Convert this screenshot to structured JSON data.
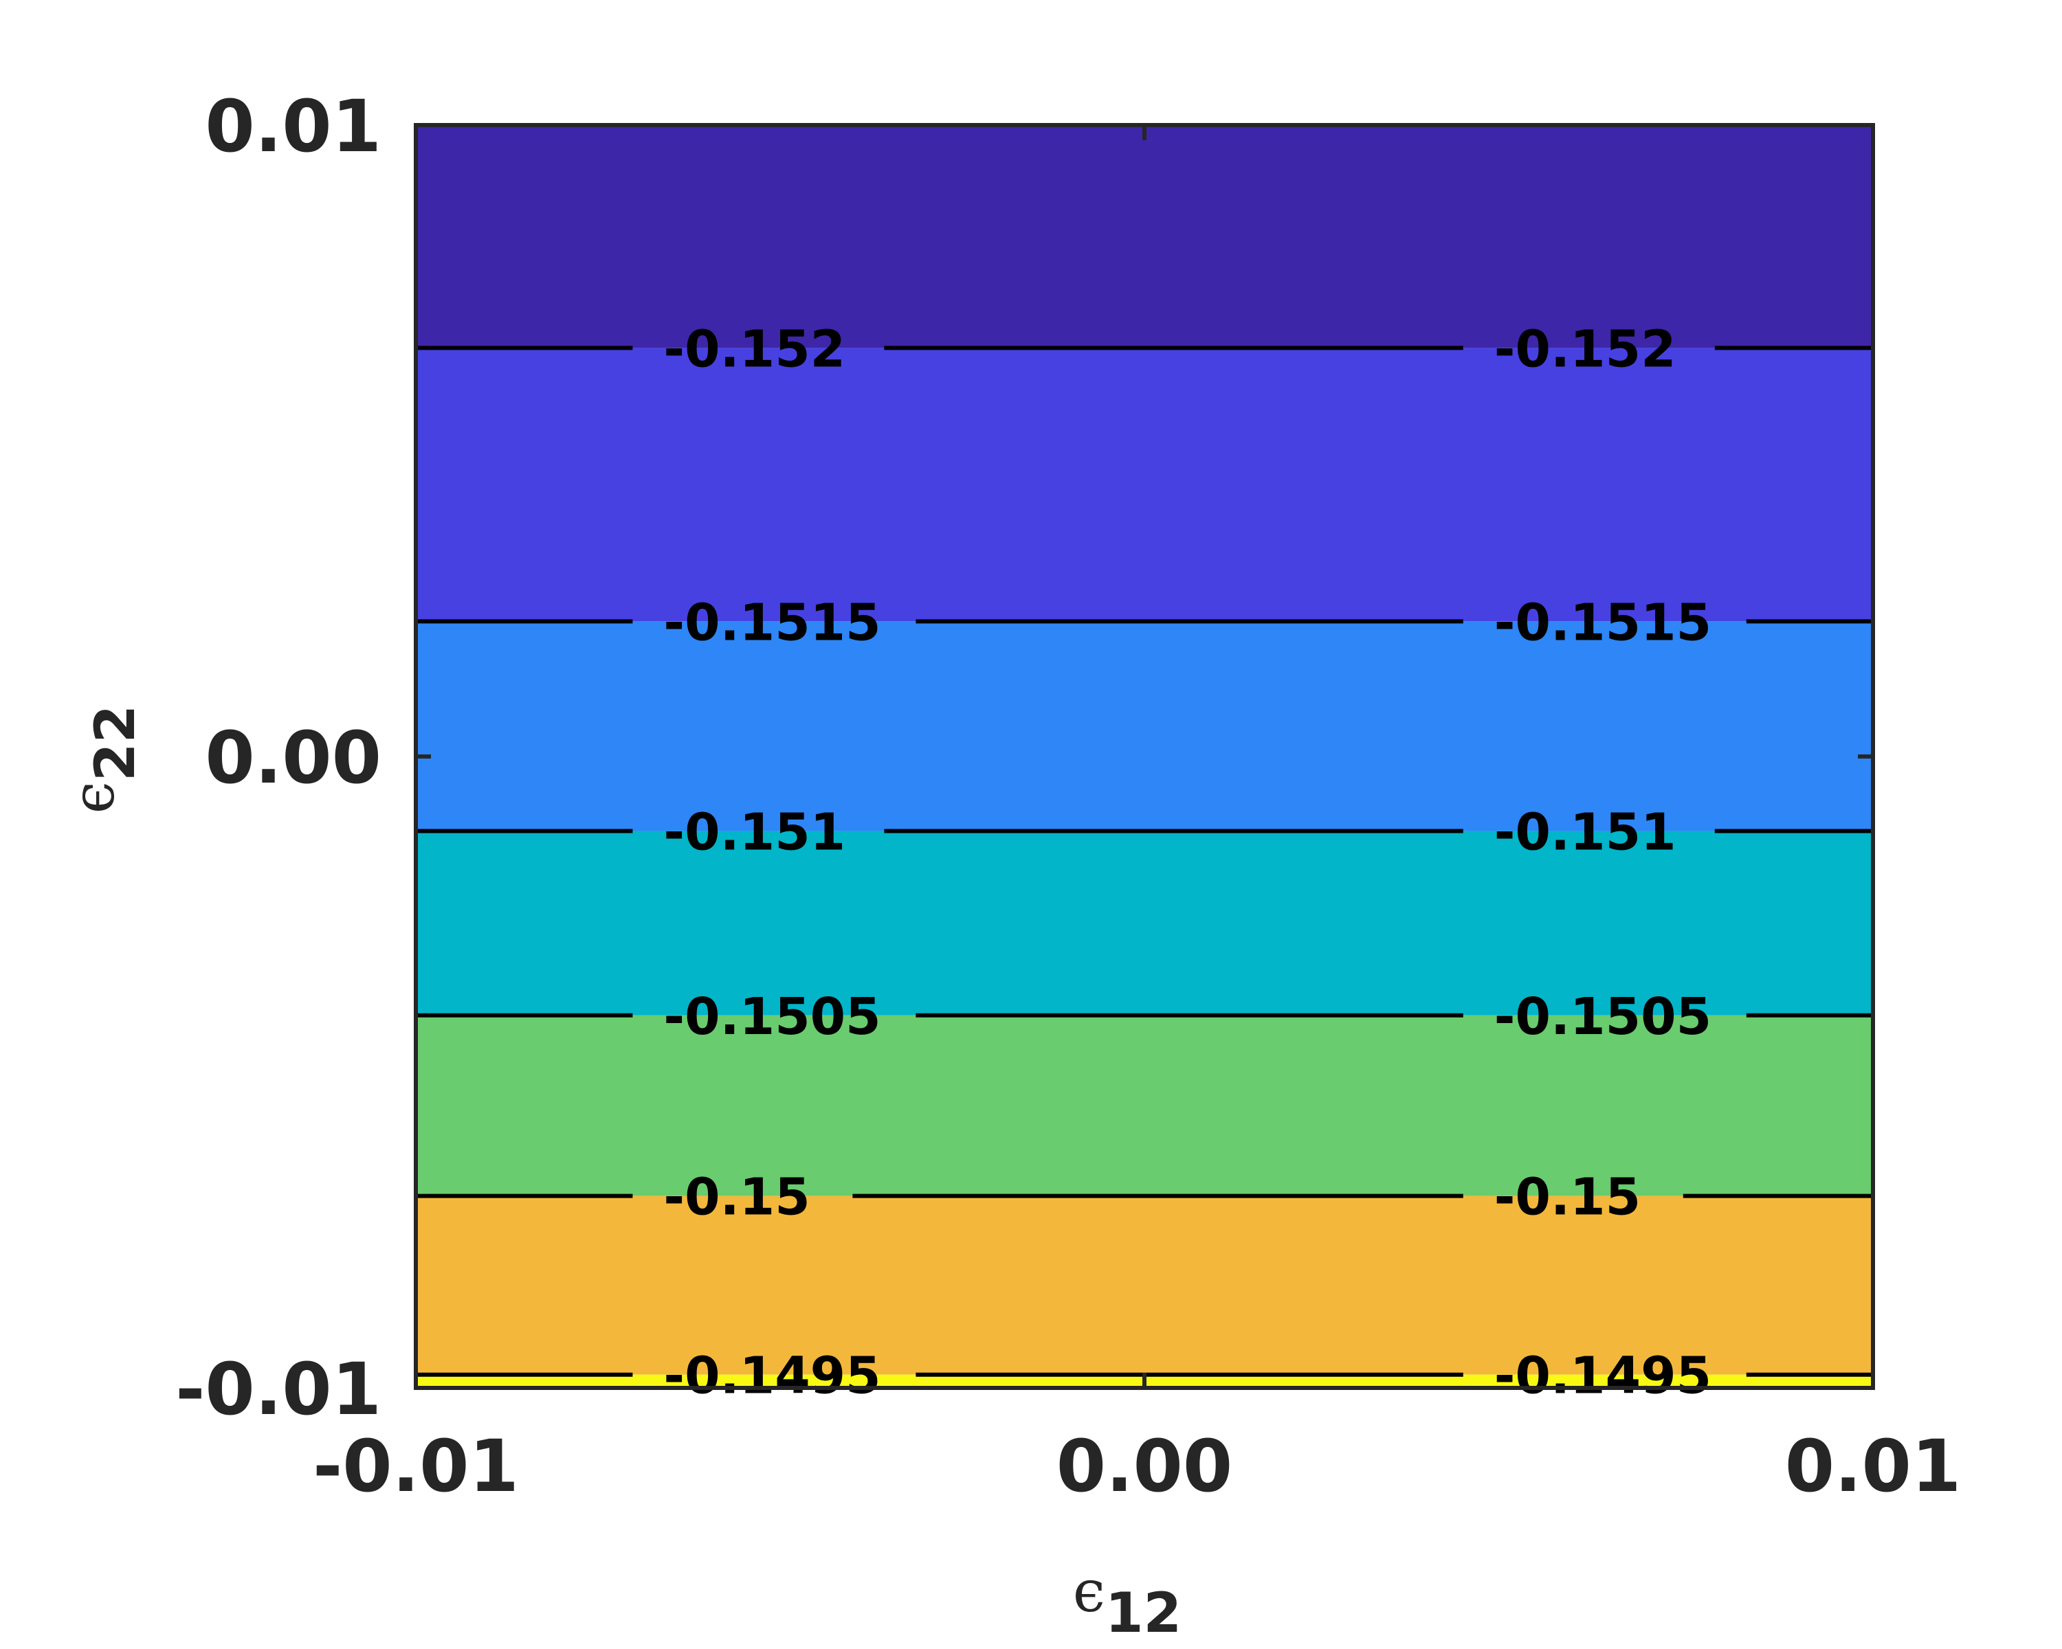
{
  "chart_data": {
    "type": "contour",
    "x_label": {
      "symbol": "ϵ",
      "subscript": "12"
    },
    "y_label": {
      "symbol": "ϵ",
      "subscript": "22"
    },
    "xlim": [
      -0.01,
      0.01
    ],
    "ylim": [
      -0.01,
      0.01
    ],
    "x_ticks": [
      {
        "value": -0.01,
        "label": "-0.01"
      },
      {
        "value": 0.0,
        "label": "0.00"
      },
      {
        "value": 0.01,
        "label": "0.01"
      }
    ],
    "y_ticks": [
      {
        "value": -0.01,
        "label": "-0.01"
      },
      {
        "value": 0.0,
        "label": "0.00"
      },
      {
        "value": 0.01,
        "label": "0.01"
      }
    ],
    "contour_lines": [
      {
        "level": -0.152,
        "label": "-0.152",
        "y": 0.00647
      },
      {
        "level": -0.1515,
        "label": "-0.1515",
        "y": 0.00214
      },
      {
        "level": -0.151,
        "label": "-0.151",
        "y": -0.00118
      },
      {
        "level": -0.1505,
        "label": "-0.1505",
        "y": -0.0041
      },
      {
        "level": -0.15,
        "label": "-0.15",
        "y": -0.00696
      },
      {
        "level": -0.1495,
        "label": "-0.1495",
        "y": -0.00979
      }
    ],
    "label_x_positions": [
      -0.0066,
      0.0048
    ],
    "filled_bands": [
      {
        "from_y": 0.00647,
        "to_y": 0.01,
        "color": "#3e26a8"
      },
      {
        "from_y": 0.00214,
        "to_y": 0.00647,
        "color": "#4741e2"
      },
      {
        "from_y": -0.00118,
        "to_y": 0.00214,
        "color": "#2e86f7"
      },
      {
        "from_y": -0.0041,
        "to_y": -0.00118,
        "color": "#02b5c9"
      },
      {
        "from_y": -0.00696,
        "to_y": -0.0041,
        "color": "#69cc6e"
      },
      {
        "from_y": -0.00979,
        "to_y": -0.00696,
        "color": "#f3b83b"
      },
      {
        "from_y": -0.01,
        "to_y": -0.00979,
        "color": "#f9fa14"
      }
    ],
    "colors": {
      "frame": "#262626",
      "contour_line": "#000000"
    },
    "grid": false,
    "legend": "none"
  }
}
